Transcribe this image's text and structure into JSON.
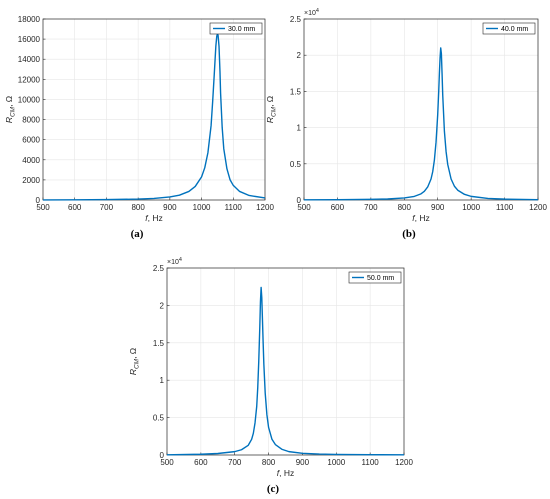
{
  "chart_data": [
    {
      "type": "line",
      "caption": "(a)",
      "xlabel_main": "f",
      "xlabel_unit": ", Hz",
      "ylabel_main": "R",
      "ylabel_sub": "CM",
      "ylabel_unit": ", Ω",
      "xlim": [
        500,
        1200
      ],
      "ylim": [
        0,
        18000
      ],
      "xticks": [
        "500",
        "600",
        "700",
        "800",
        "900",
        "1000",
        "1100",
        "1200"
      ],
      "yticks": [
        "0",
        "2000",
        "4000",
        "6000",
        "8000",
        "10000",
        "12000",
        "14000",
        "16000",
        "18000"
      ],
      "exponent_label": "",
      "grid": true,
      "legend_position": "top-right",
      "color": "#0072BD",
      "series": [
        {
          "name": "30.0 mm",
          "x": [
            500,
            600,
            700,
            800,
            850,
            900,
            930,
            960,
            980,
            1000,
            1010,
            1020,
            1030,
            1035,
            1040,
            1045,
            1048,
            1050,
            1052,
            1055,
            1058,
            1060,
            1065,
            1070,
            1080,
            1090,
            1100,
            1120,
            1150,
            1200
          ],
          "y": [
            10,
            20,
            40,
            90,
            160,
            300,
            480,
            850,
            1350,
            2300,
            3200,
            4700,
            7400,
            9800,
            12500,
            15300,
            16300,
            16500,
            16400,
            15300,
            12800,
            10600,
            7200,
            5100,
            3100,
            2000,
            1450,
            850,
            450,
            200
          ]
        }
      ]
    },
    {
      "type": "line",
      "caption": "(b)",
      "xlabel_main": "f",
      "xlabel_unit": ", Hz",
      "ylabel_main": "R",
      "ylabel_sub": "CM",
      "ylabel_unit": ", Ω",
      "xlim": [
        500,
        1200
      ],
      "ylim": [
        0,
        25000
      ],
      "xticks": [
        "500",
        "600",
        "700",
        "800",
        "900",
        "1000",
        "1100",
        "1200"
      ],
      "yticks": [
        "0",
        "0.5",
        "1",
        "1.5",
        "2",
        "2.5"
      ],
      "exponent_label": "×10",
      "exponent_power": "4",
      "grid": true,
      "legend_position": "top-right",
      "color": "#0072BD",
      "series": [
        {
          "name": "40.0 mm",
          "x": [
            500,
            600,
            700,
            750,
            800,
            830,
            850,
            860,
            870,
            880,
            885,
            890,
            895,
            900,
            903,
            905,
            907,
            909,
            911,
            913,
            915,
            920,
            925,
            930,
            940,
            950,
            960,
            980,
            1000,
            1050,
            1100,
            1200
          ],
          "y": [
            20,
            40,
            90,
            140,
            280,
            500,
            850,
            1200,
            1800,
            2900,
            3900,
            5500,
            8000,
            11800,
            15000,
            17500,
            19600,
            21000,
            20200,
            17500,
            14500,
            9500,
            6700,
            4900,
            2900,
            1900,
            1350,
            780,
            500,
            220,
            120,
            50
          ]
        }
      ]
    },
    {
      "type": "line",
      "caption": "(c)",
      "xlabel_main": "f",
      "xlabel_unit": ", Hz",
      "ylabel_main": "R",
      "ylabel_sub": "CM",
      "ylabel_unit": ", Ω",
      "xlim": [
        500,
        1200
      ],
      "ylim": [
        0,
        25000
      ],
      "xticks": [
        "500",
        "600",
        "700",
        "800",
        "900",
        "1000",
        "1100",
        "1200"
      ],
      "yticks": [
        "0",
        "0.5",
        "1",
        "1.5",
        "2",
        "2.5"
      ],
      "exponent_label": "×10",
      "exponent_power": "4",
      "grid": true,
      "legend_position": "top-right",
      "color": "#0072BD",
      "series": [
        {
          "name": "50.0 mm",
          "x": [
            500,
            600,
            650,
            700,
            720,
            740,
            750,
            755,
            760,
            765,
            768,
            771,
            774,
            776,
            778,
            780,
            782,
            784,
            786,
            790,
            795,
            800,
            810,
            820,
            840,
            860,
            900,
            950,
            1000,
            1100,
            1200
          ],
          "y": [
            30,
            100,
            200,
            450,
            700,
            1300,
            2100,
            2900,
            4300,
            6500,
            9000,
            12500,
            17000,
            20500,
            22400,
            21000,
            18000,
            15000,
            12200,
            8300,
            5400,
            3700,
            2100,
            1400,
            750,
            450,
            220,
            120,
            80,
            40,
            20
          ]
        }
      ]
    }
  ]
}
